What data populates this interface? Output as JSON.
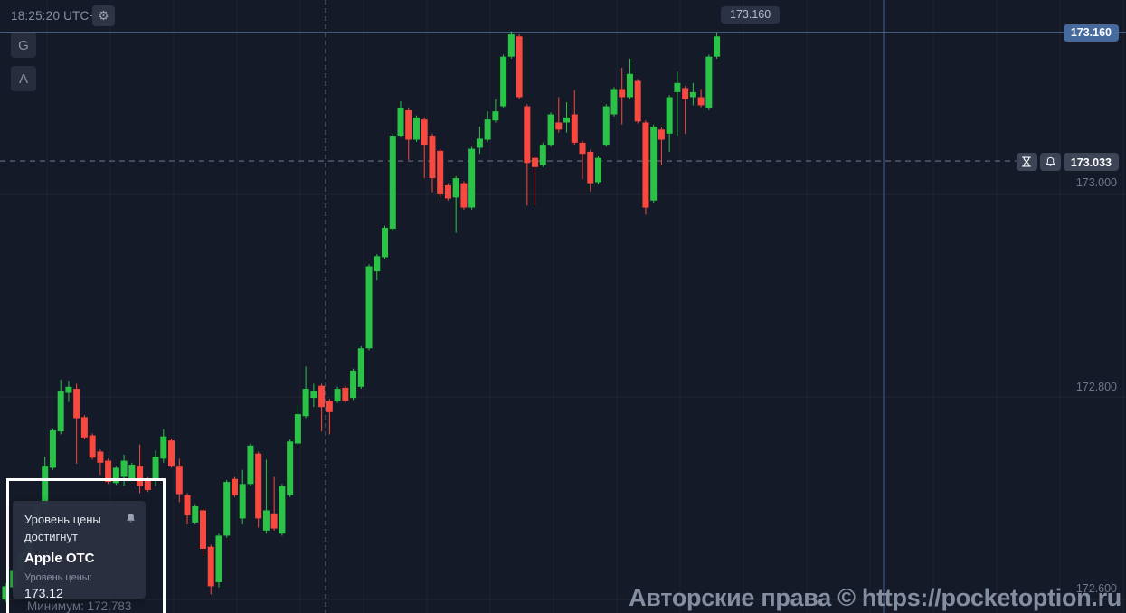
{
  "topbar": {
    "clock": "18:25:20 UTC+4",
    "gear_icon": "gear"
  },
  "sidebar": {
    "buttons": [
      {
        "label": "G"
      },
      {
        "label": "A"
      }
    ]
  },
  "watermark": {
    "text": "Авторские права © https://pocketoption.ru"
  },
  "notification": {
    "line1": "Уровень цены",
    "line2": "достигнут",
    "bell_icon": "bell",
    "asset": "Apple OTC",
    "field_label": "Уровень цены:",
    "value": "173.12"
  },
  "alert_controls": {
    "hourglass_icon": "hourglass",
    "bell_icon": "bell"
  },
  "chart_data": {
    "type": "candlestick",
    "symbol": "Apple OTC",
    "current_price": 173.16,
    "current_price_text": "173.160",
    "alert_price": 173.033,
    "alert_price_text": "173.033",
    "minimum_text": "Минимум: 172.783",
    "y_axis_labels": [
      "173.000",
      "172.800",
      "172.600"
    ],
    "gridline_prices": [
      173.0,
      172.8,
      172.6
    ],
    "price_range_visible": [
      172.597,
      173.165
    ],
    "legend": "green = bullish candle, red = bearish candle",
    "candles": [
      [
        172.6,
        172.616,
        172.597,
        172.613
      ],
      [
        172.612,
        172.63,
        172.61,
        172.629
      ],
      [
        172.628,
        172.648,
        172.626,
        172.646
      ],
      [
        172.644,
        172.665,
        172.642,
        172.663
      ],
      [
        172.662,
        172.694,
        172.66,
        172.692
      ],
      [
        172.692,
        172.741,
        172.687,
        172.732
      ],
      [
        172.73,
        172.769,
        172.728,
        172.767
      ],
      [
        172.766,
        172.817,
        172.763,
        172.806
      ],
      [
        172.804,
        172.816,
        172.795,
        172.81
      ],
      [
        172.808,
        172.813,
        172.734,
        172.779
      ],
      [
        172.78,
        172.782,
        172.758,
        172.76
      ],
      [
        172.762,
        172.764,
        172.738,
        172.74
      ],
      [
        172.746,
        172.748,
        172.723,
        172.735
      ],
      [
        172.737,
        172.739,
        172.714,
        172.716
      ],
      [
        172.715,
        172.732,
        172.713,
        172.73
      ],
      [
        172.721,
        172.743,
        172.712,
        172.737
      ],
      [
        172.719,
        172.735,
        172.717,
        172.733
      ],
      [
        172.732,
        172.753,
        172.705,
        172.712
      ],
      [
        172.719,
        172.721,
        172.706,
        172.708
      ],
      [
        172.717,
        172.747,
        172.712,
        172.741
      ],
      [
        172.739,
        172.768,
        172.735,
        172.761
      ],
      [
        172.757,
        172.759,
        172.73,
        172.732
      ],
      [
        172.732,
        172.739,
        172.696,
        172.704
      ],
      [
        172.703,
        172.705,
        172.674,
        172.683
      ],
      [
        172.676,
        172.694,
        172.674,
        172.692
      ],
      [
        172.688,
        172.69,
        172.643,
        172.65
      ],
      [
        172.652,
        172.654,
        172.605,
        172.613
      ],
      [
        172.617,
        172.665,
        172.612,
        172.663
      ],
      [
        172.663,
        172.718,
        172.661,
        172.716
      ],
      [
        172.719,
        172.721,
        172.701,
        172.703
      ],
      [
        172.68,
        172.728,
        172.674,
        172.714
      ],
      [
        172.714,
        172.754,
        172.712,
        172.752
      ],
      [
        172.744,
        172.746,
        172.671,
        172.68
      ],
      [
        172.668,
        172.738,
        172.665,
        172.688
      ],
      [
        172.685,
        172.721,
        172.668,
        172.67
      ],
      [
        172.665,
        172.714,
        172.663,
        172.712
      ],
      [
        172.703,
        172.758,
        172.701,
        172.756
      ],
      [
        172.754,
        172.792,
        172.752,
        172.783
      ],
      [
        172.781,
        172.83,
        172.779,
        172.808
      ],
      [
        172.799,
        172.813,
        172.79,
        172.806
      ],
      [
        172.811,
        172.813,
        172.766,
        172.79
      ],
      [
        172.796,
        172.798,
        172.763,
        172.785
      ],
      [
        172.796,
        172.81,
        172.794,
        172.808
      ],
      [
        172.809,
        172.811,
        172.794,
        172.796
      ],
      [
        172.799,
        172.828,
        172.797,
        172.826
      ],
      [
        172.81,
        172.85,
        172.808,
        172.848
      ],
      [
        172.848,
        172.931,
        172.846,
        172.929
      ],
      [
        172.924,
        172.941,
        172.915,
        172.939
      ],
      [
        172.938,
        172.969,
        172.936,
        172.967
      ],
      [
        172.966,
        173.06,
        172.964,
        173.058
      ],
      [
        173.058,
        173.092,
        173.056,
        173.085
      ],
      [
        173.083,
        173.085,
        173.034,
        173.054
      ],
      [
        173.054,
        173.078,
        173.052,
        173.076
      ],
      [
        173.074,
        173.076,
        173.016,
        173.049
      ],
      [
        173.058,
        173.06,
        173.002,
        173.016
      ],
      [
        173.043,
        173.045,
        172.997,
        173.0
      ],
      [
        173.009,
        173.011,
        172.994,
        172.996
      ],
      [
        172.997,
        173.018,
        172.962,
        173.016
      ],
      [
        173.011,
        173.013,
        172.985,
        172.987
      ],
      [
        172.987,
        173.047,
        172.985,
        173.045
      ],
      [
        173.046,
        173.067,
        173.04,
        173.055
      ],
      [
        173.054,
        173.082,
        173.052,
        173.074
      ],
      [
        173.073,
        173.094,
        173.071,
        173.082
      ],
      [
        173.087,
        173.138,
        173.085,
        173.136
      ],
      [
        173.136,
        173.161,
        173.134,
        173.158
      ],
      [
        173.156,
        173.158,
        173.094,
        173.096
      ],
      [
        173.087,
        173.089,
        172.989,
        173.031
      ],
      [
        173.036,
        173.038,
        172.989,
        173.027
      ],
      [
        173.029,
        173.051,
        173.027,
        173.049
      ],
      [
        173.049,
        173.081,
        173.047,
        173.079
      ],
      [
        173.071,
        173.096,
        173.061,
        173.064
      ],
      [
        173.071,
        173.091,
        173.061,
        173.076
      ],
      [
        173.079,
        173.103,
        173.049,
        173.051
      ],
      [
        173.051,
        173.053,
        173.015,
        173.04
      ],
      [
        173.042,
        173.044,
        173.003,
        173.011
      ],
      [
        173.012,
        173.038,
        173.01,
        173.036
      ],
      [
        173.049,
        173.089,
        173.047,
        173.087
      ],
      [
        173.079,
        173.106,
        173.077,
        173.104
      ],
      [
        173.104,
        173.125,
        173.069,
        173.096
      ],
      [
        173.096,
        173.134,
        173.094,
        173.119
      ],
      [
        173.112,
        173.114,
        173.07,
        173.072
      ],
      [
        173.071,
        173.073,
        172.98,
        172.987
      ],
      [
        172.994,
        173.069,
        172.992,
        173.067
      ],
      [
        173.064,
        173.066,
        173.029,
        173.054
      ],
      [
        173.06,
        173.098,
        173.042,
        173.096
      ],
      [
        173.101,
        173.121,
        173.058,
        173.11
      ],
      [
        173.105,
        173.107,
        173.06,
        173.094
      ],
      [
        173.096,
        173.11,
        173.088,
        173.101
      ],
      [
        173.096,
        173.104,
        173.086,
        173.088
      ],
      [
        173.085,
        173.138,
        173.083,
        173.136
      ],
      [
        173.136,
        173.16,
        173.134,
        173.156
      ]
    ],
    "colors": {
      "background": "#151a28",
      "candle_up": "#2bc248",
      "candle_down": "#f7493f",
      "current_price_line": "#54749e",
      "current_badge_bg": "#46699e",
      "alert_badge_bg": "#3d4456",
      "crosshair": "#656e81",
      "axis_text": "#70788b"
    }
  }
}
